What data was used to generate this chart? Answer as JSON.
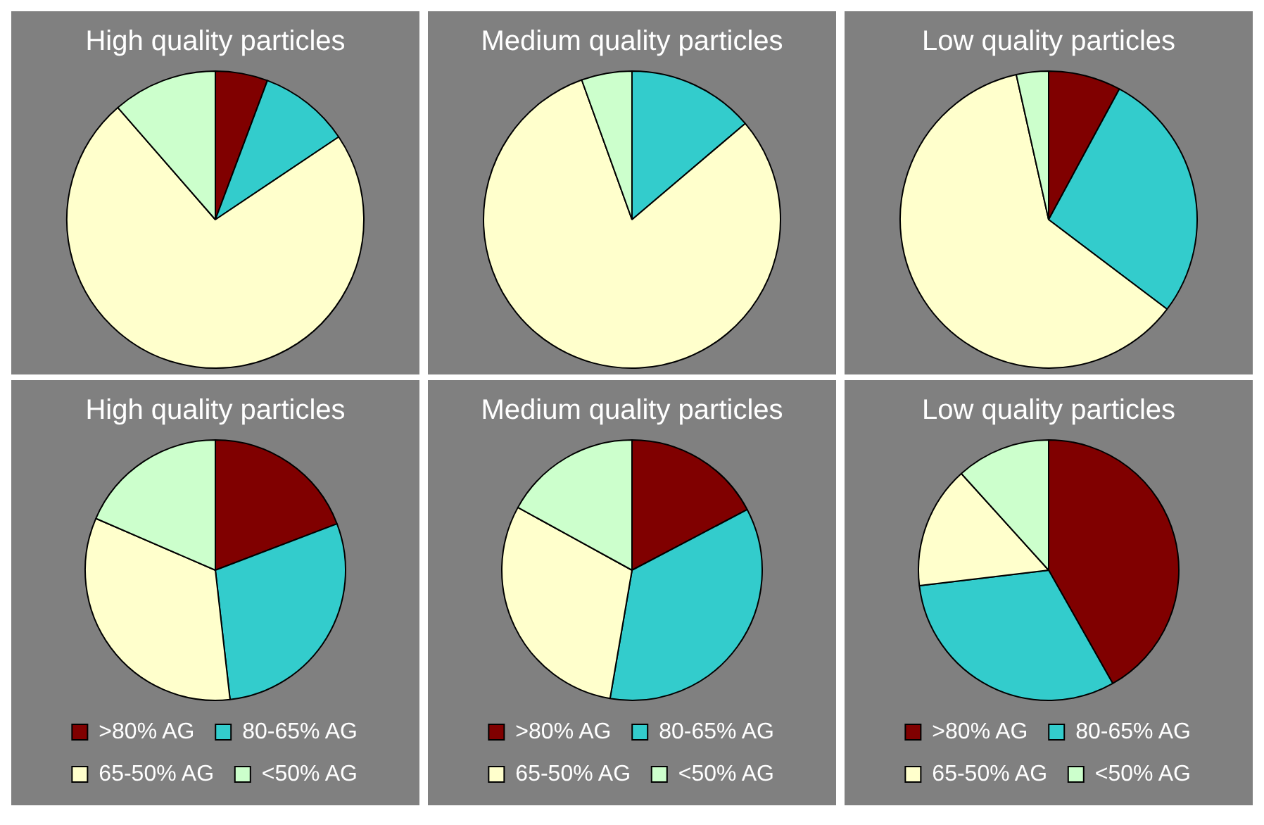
{
  "chart_data": [
    {
      "type": "pie",
      "title": "High quality particles",
      "categories": [
        null,
        null,
        null,
        null
      ],
      "values": [
        5.7,
        9.9,
        73.0,
        11.4
      ],
      "colors": [
        "#800000",
        "#33cccc",
        "#ffffcc",
        "#ccffcc"
      ],
      "legend": false
    },
    {
      "type": "pie",
      "title": "Medium quality particles",
      "categories": [
        null,
        null,
        null
      ],
      "values": [
        13.8,
        80.7,
        5.5
      ],
      "colors": [
        "#33cccc",
        "#ffffcc",
        "#ccffcc"
      ],
      "legend": false
    },
    {
      "type": "pie",
      "title": "Low quality particles",
      "categories": [
        null,
        null,
        null,
        null
      ],
      "values": [
        7.9,
        27.4,
        61.2,
        3.5
      ],
      "colors": [
        "#800000",
        "#33cccc",
        "#ffffcc",
        "#ccffcc"
      ],
      "legend": false
    },
    {
      "type": "pie",
      "title": "High quality particles",
      "categories": [
        ">80% AG",
        "80-65% AG",
        "65-50% AG",
        "<50% AG"
      ],
      "values": [
        19.2,
        29.0,
        33.3,
        18.5
      ],
      "colors": [
        "#800000",
        "#33cccc",
        "#ffffcc",
        "#ccffcc"
      ],
      "legend": "bottom"
    },
    {
      "type": "pie",
      "title": "Medium quality particles",
      "categories": [
        ">80% AG",
        "80-65% AG",
        "65-50% AG",
        "<50% AG"
      ],
      "values": [
        17.3,
        35.4,
        30.3,
        17.0
      ],
      "colors": [
        "#800000",
        "#33cccc",
        "#ffffcc",
        "#ccffcc"
      ],
      "legend": "bottom"
    },
    {
      "type": "pie",
      "title": "Low quality particles",
      "categories": [
        ">80% AG",
        "80-65% AG",
        "65-50% AG",
        "<50% AG"
      ],
      "values": [
        41.8,
        31.3,
        15.2,
        11.7
      ],
      "colors": [
        "#800000",
        "#33cccc",
        "#ffffcc",
        "#ccffcc"
      ],
      "legend": "bottom"
    }
  ]
}
